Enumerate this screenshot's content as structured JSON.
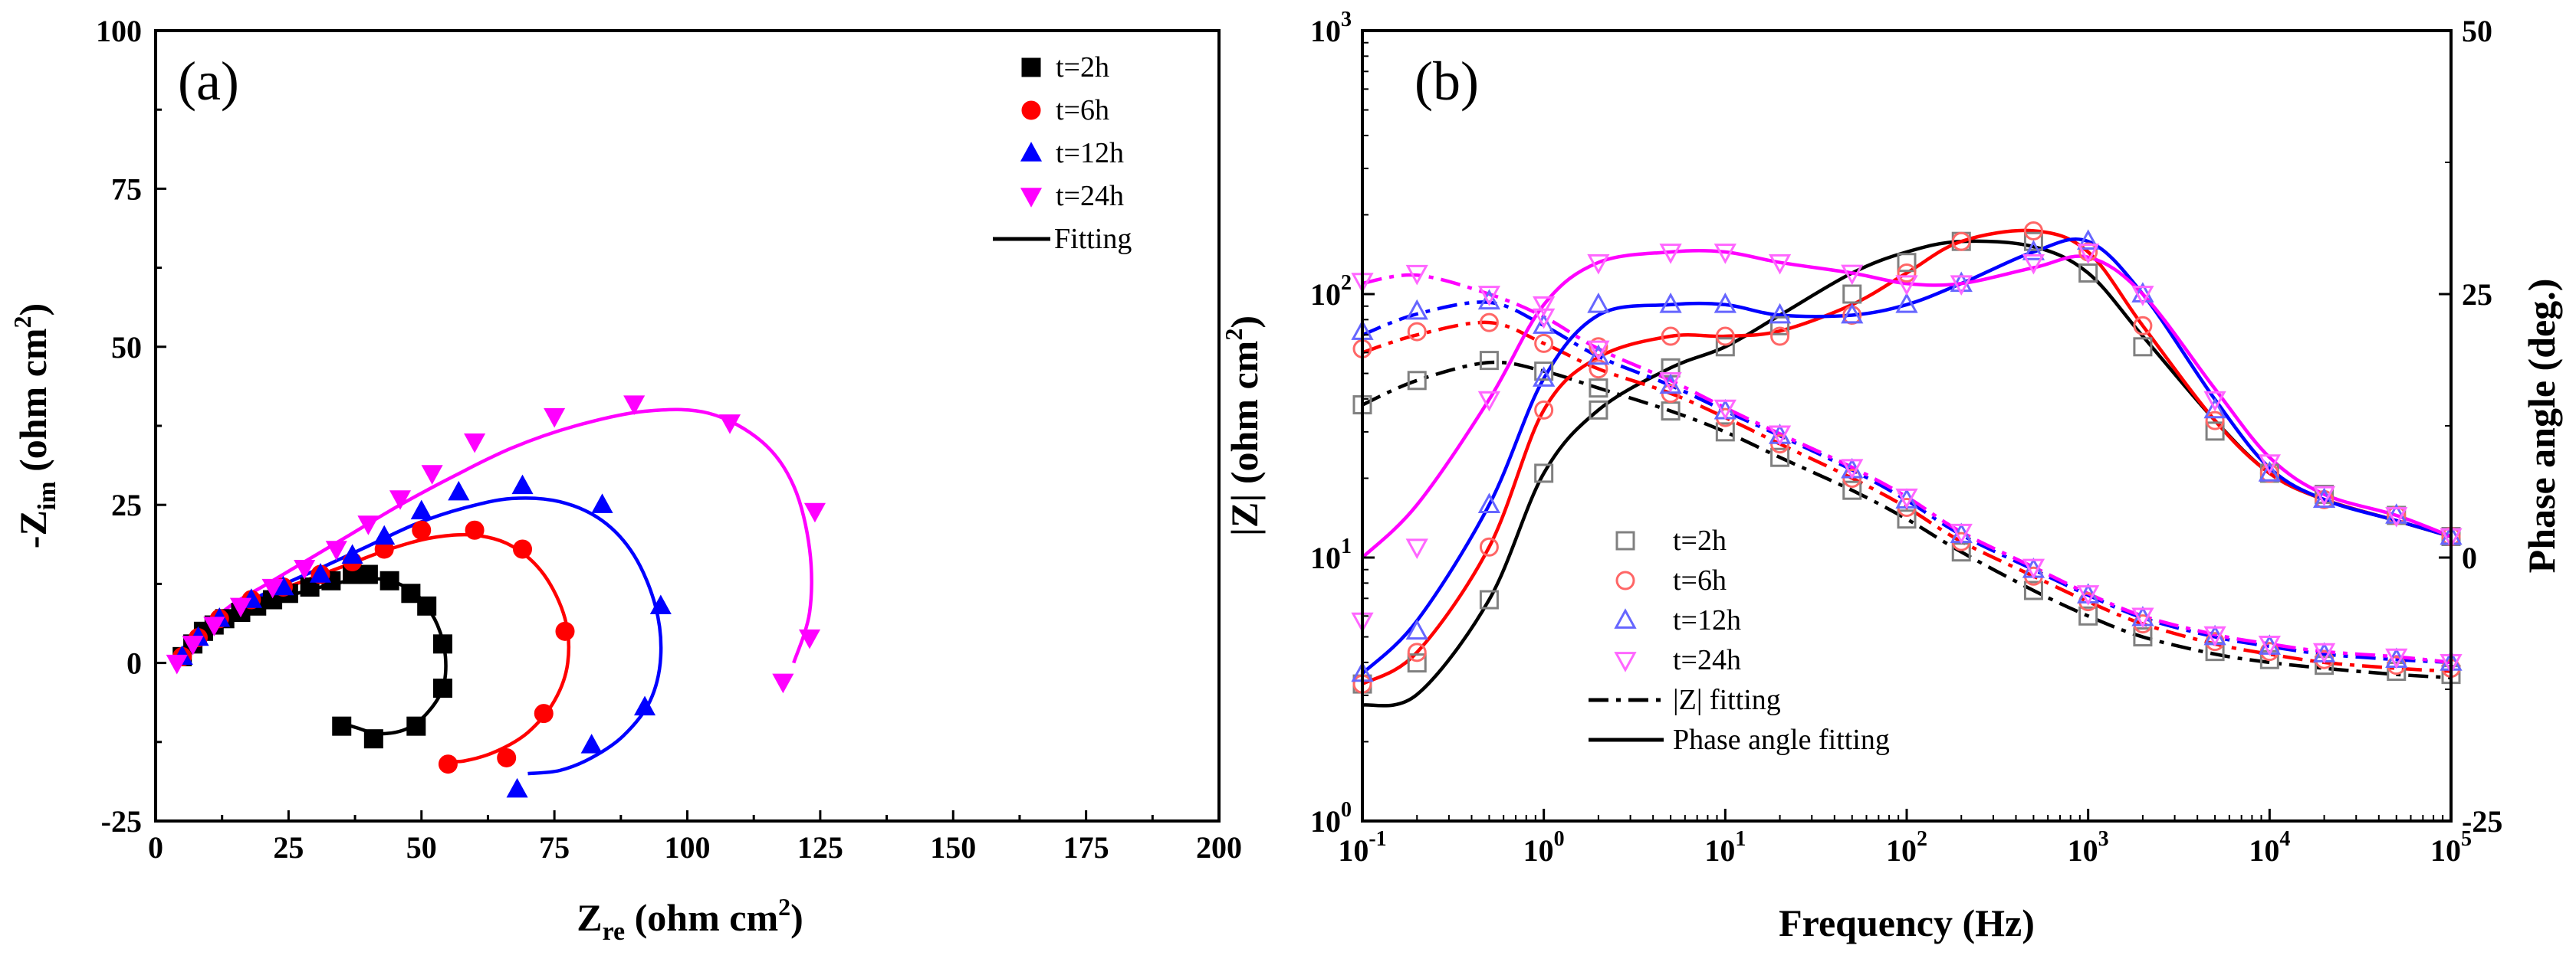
{
  "chart_data": [
    {
      "panel": "(a)",
      "type": "scatter",
      "xlabel": "Zre (ohm cm2)",
      "ylabel": "-Zim (ohm cm2)",
      "xlabel_main": "Z",
      "xlabel_sub": "re",
      "xlabel_unit": " (ohm cm",
      "xlabel_sup": "2",
      "xlabel_close": ")",
      "ylabel_main": "-Z",
      "ylabel_sub": "im",
      "ylabel_unit": " (ohm cm",
      "ylabel_sup": "2",
      "ylabel_close": ")",
      "xlim": [
        0,
        200
      ],
      "ylim": [
        -25,
        100
      ],
      "xticks": [
        0,
        25,
        50,
        75,
        100,
        125,
        150,
        175,
        200
      ],
      "yticks": [
        -25,
        0,
        25,
        50,
        75,
        100
      ],
      "legend_position": "top-right",
      "series": [
        {
          "name": "t=2h",
          "marker": "square",
          "color": "#000000",
          "x": [
            5,
            7,
            9,
            11,
            13,
            16,
            19,
            22,
            25,
            29,
            33,
            37,
            40,
            44,
            48,
            51,
            54,
            54,
            49,
            41,
            35
          ],
          "y": [
            1,
            3,
            5,
            6,
            7,
            8,
            9,
            10,
            11,
            12,
            13,
            14,
            14,
            13,
            11,
            9,
            3,
            -4,
            -10,
            -12,
            -10
          ],
          "fit_x": [
            4,
            6,
            9,
            13,
            18,
            23,
            28,
            33,
            38,
            43,
            47,
            50,
            53,
            54.5,
            54,
            51,
            47,
            42,
            38,
            35
          ],
          "fit_y": [
            0,
            3,
            5.5,
            7.5,
            9,
            10.2,
            11.3,
            12.4,
            13.2,
            13.2,
            12,
            10,
            6,
            1,
            -4,
            -8,
            -10.5,
            -11.2,
            -10.3,
            -9.5
          ]
        },
        {
          "name": "t=6h",
          "marker": "circle",
          "color": "#ff0000",
          "x": [
            5,
            8,
            12,
            18,
            24,
            31,
            37,
            43,
            50,
            60,
            69,
            77,
            73,
            66,
            55
          ],
          "y": [
            1,
            4,
            7,
            10,
            12,
            14,
            16,
            18,
            21,
            21,
            18,
            5,
            -8,
            -15,
            -16
          ],
          "fit_x": [
            4,
            8,
            13,
            20,
            28,
            36,
            44,
            52,
            60,
            67,
            73,
            77,
            77.5,
            75,
            70,
            64,
            58,
            54
          ],
          "fit_y": [
            0,
            4.5,
            7.5,
            10.5,
            13,
            15.5,
            18,
            19.8,
            20.2,
            18.5,
            14,
            7,
            0,
            -6,
            -11,
            -14,
            -15.5,
            -15.5
          ]
        },
        {
          "name": "t=12h",
          "marker": "triangle-up",
          "color": "#0000ff",
          "x": [
            5,
            8,
            12,
            18,
            24,
            31,
            37,
            43,
            50,
            57,
            69,
            84,
            95,
            92,
            82,
            68
          ],
          "y": [
            1,
            4,
            7,
            10,
            12,
            14,
            17,
            20,
            24,
            27,
            28,
            25,
            9,
            -7,
            -13,
            -20
          ],
          "fit_x": [
            4,
            9,
            15,
            23,
            31,
            40,
            49,
            58,
            67,
            76,
            84,
            90,
            94,
            95,
            93,
            88,
            82,
            76,
            70
          ],
          "fit_y": [
            0,
            5,
            8.5,
            12,
            15,
            18.5,
            22,
            24.5,
            26,
            25.5,
            22.5,
            17,
            9,
            1,
            -6,
            -11.5,
            -15,
            -17,
            -17.5
          ]
        },
        {
          "name": "t=24h",
          "marker": "triangle-down",
          "color": "#ff00ff",
          "x": [
            4,
            7,
            11,
            16,
            22,
            28,
            34,
            40,
            46,
            52,
            60,
            75,
            90,
            108,
            124,
            123,
            118
          ],
          "y": [
            0,
            3,
            6,
            9,
            12,
            15,
            18,
            22,
            26,
            30,
            35,
            39,
            41,
            38,
            24,
            4,
            -3
          ],
          "fit_x": [
            3,
            8,
            14,
            21,
            29,
            37,
            46,
            56,
            67,
            79,
            92,
            104,
            114,
            120,
            123,
            123,
            120
          ],
          "fit_y": [
            0,
            4.5,
            9,
            12.5,
            16.5,
            20.5,
            25,
            29.5,
            34,
            37.5,
            39.8,
            39.5,
            35,
            28,
            18,
            8,
            0
          ]
        }
      ],
      "fitting_label": "Fitting"
    },
    {
      "panel": "(b)",
      "type": "line",
      "xlabel": "Frequency (Hz)",
      "ylabel_left": "|Z| (ohm cm2)",
      "ylabel_left_main": "|Z| (ohm cm",
      "ylabel_left_sup": "2",
      "ylabel_left_close": ")",
      "ylabel_right": "Phase angle (deg.)",
      "x_scale": "log",
      "xlim_exp": [
        -1,
        5
      ],
      "ylim_left_exp": [
        0,
        3
      ],
      "ylim_right": [
        -25,
        50
      ],
      "xtick_exponents": [
        "-1",
        "0",
        "1",
        "2",
        "3",
        "4",
        "5"
      ],
      "ytick_left_exponents": [
        "0",
        "1",
        "2",
        "3"
      ],
      "yticks_right": [
        -25,
        0,
        25,
        50
      ],
      "tick_base": "10",
      "legend_position": "bottom-left",
      "freq": [
        0.1,
        0.2,
        0.5,
        1,
        2,
        5,
        10,
        20,
        50,
        100,
        200,
        500,
        1000,
        2000,
        5000,
        10000,
        20000,
        50000,
        100000
      ],
      "series": [
        {
          "name": "t=2h",
          "marker": "open-square",
          "color": "#808080",
          "line_color": "#000000",
          "Z": [
            38,
            47,
            56,
            51,
            44,
            36,
            30,
            24,
            18,
            14,
            10.5,
            7.5,
            6,
            5,
            4.4,
            4.1,
            3.9,
            3.7,
            3.6
          ],
          "phase": [
            -12,
            -10,
            -4,
            8,
            14,
            18,
            20,
            22,
            25,
            28,
            30,
            30,
            27,
            20,
            12,
            8,
            6,
            4,
            2
          ],
          "Z_fit": [
            38,
            47,
            55,
            51,
            44,
            36,
            30,
            24,
            18,
            14,
            10.5,
            7.5,
            6,
            5,
            4.3,
            4,
            3.8,
            3.6,
            3.5
          ],
          "phase_fit": [
            -14,
            -13,
            -4,
            8,
            14,
            18,
            20,
            23,
            27,
            29,
            30,
            29.5,
            27,
            21,
            13,
            8,
            5.5,
            3.5,
            2
          ]
        },
        {
          "name": "t=6h",
          "marker": "open-circle",
          "color": "#ff6666",
          "line_color": "#ff0000",
          "Z": [
            62,
            72,
            78,
            65,
            52,
            42,
            34,
            27,
            20,
            15.5,
            11.5,
            8.5,
            6.8,
            5.6,
            4.8,
            4.4,
            4.1,
            3.9,
            3.8
          ],
          "phase": [
            -12,
            -9,
            1,
            14,
            20,
            21,
            21,
            21,
            23,
            27,
            30,
            31,
            29,
            22,
            13,
            8,
            5.5,
            4,
            2
          ],
          "Z_fit": [
            60,
            70,
            78,
            65,
            52,
            42,
            34,
            27,
            20,
            15.5,
            11.5,
            8.5,
            6.8,
            5.6,
            4.7,
            4.3,
            4,
            3.8,
            3.7
          ],
          "phase_fit": [
            -12,
            -9,
            1,
            14,
            19,
            21,
            21,
            21.5,
            24,
            27,
            30,
            31,
            29,
            22,
            13,
            8,
            5.5,
            3.5,
            2
          ]
        },
        {
          "name": "t=12h",
          "marker": "open-triangle-up",
          "color": "#6666ff",
          "line_color": "#0000ff",
          "Z": [
            72,
            86,
            94,
            76,
            58,
            45,
            36,
            29,
            21.5,
            16.5,
            12.2,
            9,
            7.2,
            5.9,
            5,
            4.6,
            4.3,
            4.1,
            4
          ],
          "phase": [
            -11,
            -7,
            5,
            17,
            24,
            24,
            24,
            23,
            23,
            24,
            26,
            29,
            30,
            25,
            14,
            8,
            5.5,
            4,
            2
          ],
          "Z_fit": [
            70,
            84,
            93,
            76,
            58,
            45,
            36,
            29,
            21.5,
            16.5,
            12.2,
            9,
            7.2,
            5.9,
            5,
            4.6,
            4.3,
            4.1,
            4
          ],
          "phase_fit": [
            -11,
            -6,
            5,
            17,
            23,
            24,
            24,
            23,
            23,
            24,
            26,
            29,
            30,
            25,
            15,
            8.5,
            5.5,
            3.5,
            2
          ]
        },
        {
          "name": "t=24h",
          "marker": "open-triangle-down",
          "color": "#ff66ff",
          "line_color": "#ff00ff",
          "Z": [
            112,
            120,
            100,
            82,
            62,
            47,
            37,
            29.5,
            22,
            17,
            12.5,
            9.2,
            7.3,
            6,
            5.1,
            4.7,
            4.4,
            4.2,
            4
          ],
          "phase": [
            -6,
            1,
            15,
            24,
            28,
            29,
            29,
            28,
            27,
            26,
            26,
            28,
            29,
            25,
            15,
            9,
            6,
            4,
            2
          ],
          "Z_fit": [
            110,
            118,
            100,
            82,
            62,
            47,
            37,
            29.5,
            22,
            17,
            12.5,
            9.2,
            7.3,
            6,
            5.1,
            4.7,
            4.4,
            4.2,
            4
          ],
          "phase_fit": [
            0,
            5,
            15,
            24,
            28,
            29,
            29,
            28,
            27,
            26,
            26,
            27.5,
            28.5,
            25,
            16,
            9.5,
            6,
            4,
            2
          ]
        }
      ],
      "fit_labels": {
        "z": "|Z| fitting",
        "phase": "Phase angle fitting"
      }
    }
  ]
}
